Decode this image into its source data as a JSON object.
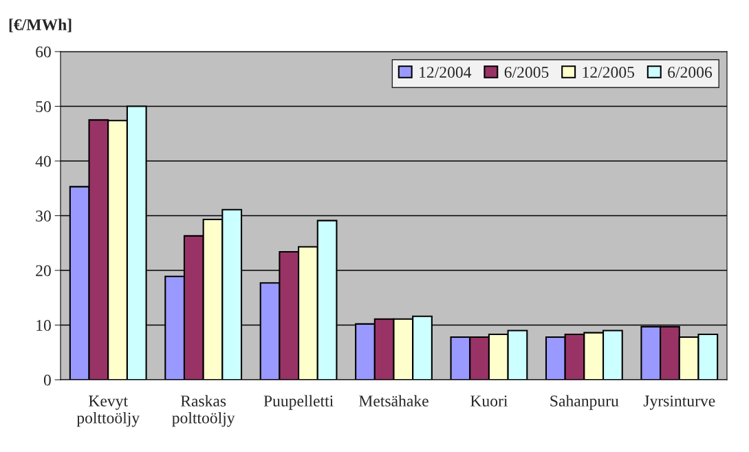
{
  "chart_data": {
    "type": "bar",
    "ylabel": "[€/MWh]",
    "categories": [
      "Kevyt\npolttoöljy",
      "Raskas\npolttoöljy",
      "Puupelletti",
      "Metsähake",
      "Kuori",
      "Sahanpuru",
      "Jyrsinturve"
    ],
    "series": [
      {
        "name": "12/2004",
        "color": "#9999ff",
        "values": [
          35.3,
          18.9,
          17.7,
          10.2,
          7.8,
          7.8,
          9.7
        ]
      },
      {
        "name": "6/2005",
        "color": "#993366",
        "values": [
          47.5,
          26.3,
          23.4,
          11.1,
          7.8,
          8.3,
          9.7
        ]
      },
      {
        "name": "12/2005",
        "color": "#ffffcc",
        "values": [
          47.4,
          29.3,
          24.3,
          11.1,
          8.3,
          8.6,
          7.8
        ]
      },
      {
        "name": "6/2006",
        "color": "#ccffff",
        "values": [
          50.0,
          31.1,
          29.1,
          11.6,
          9.0,
          9.0,
          8.3
        ]
      }
    ],
    "ylim": [
      0,
      60
    ],
    "yticks": [
      0,
      10,
      20,
      30,
      40,
      50,
      60
    ],
    "grid": "y",
    "legend": "top right"
  }
}
